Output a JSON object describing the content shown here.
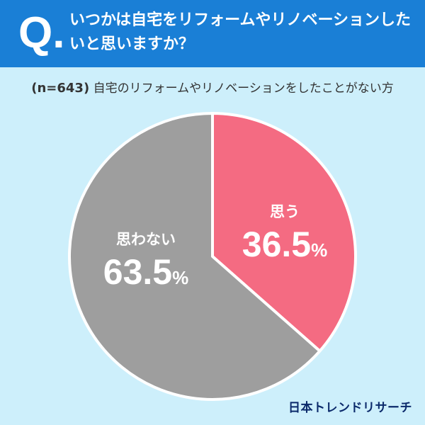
{
  "header": {
    "q_mark": "Q.",
    "question": "いつかは自宅をリフォームやリノベーションしたいと思いますか？"
  },
  "subtitle": {
    "n_label": "(n=643)",
    "text": "自宅のリフォームやリノベーションをしたことがない方"
  },
  "chart_data": {
    "type": "pie",
    "categories": [
      "思う",
      "思わない"
    ],
    "values": [
      36.5,
      63.5
    ],
    "unit": "%",
    "colors": [
      "#f46b82",
      "#9e9e9e"
    ]
  },
  "brand": "日本トレンドリサーチ"
}
